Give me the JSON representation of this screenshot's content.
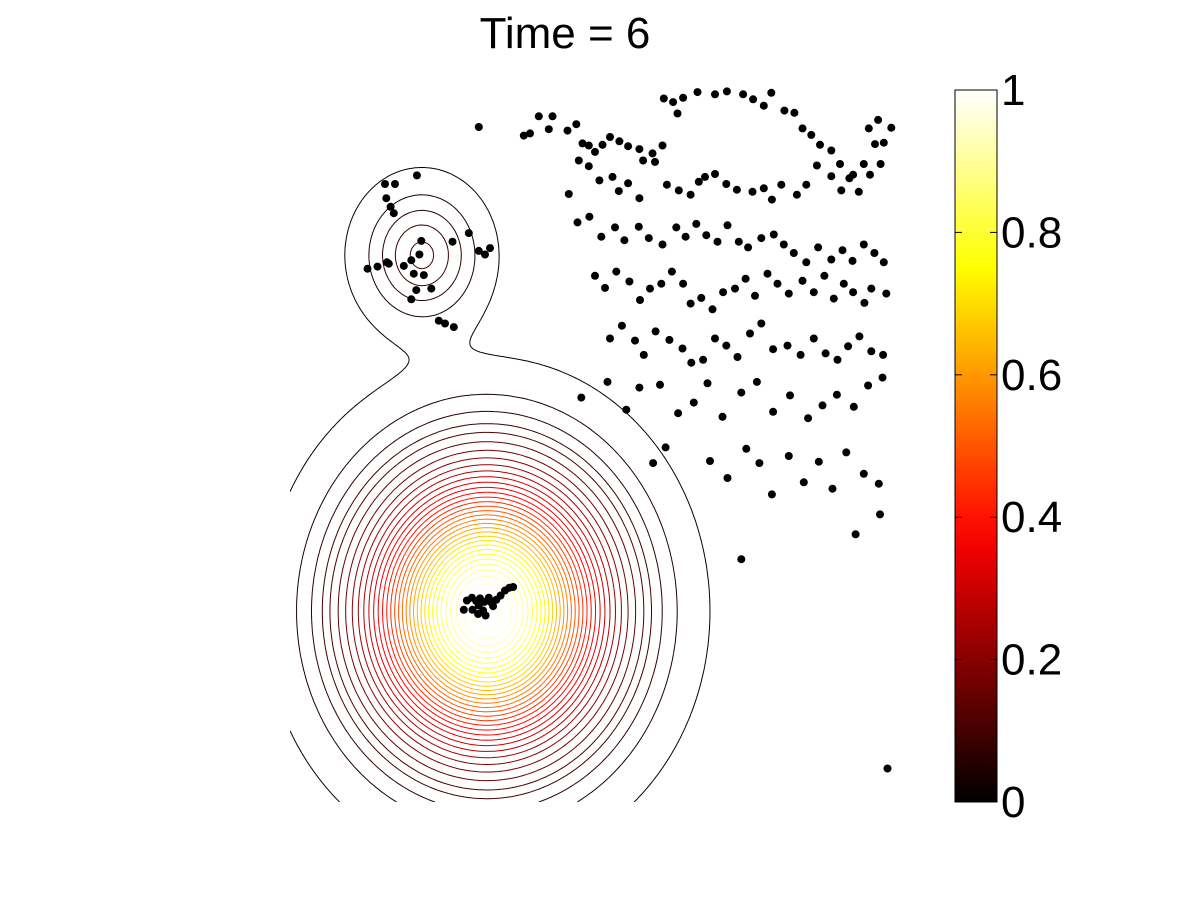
{
  "chart_data": {
    "type": "scatter",
    "title": "Time = 6",
    "subtitle": "",
    "xlabel": "",
    "ylabel": "",
    "axes_visible": false,
    "grid": false,
    "xlim": [
      0,
      1
    ],
    "ylim": [
      0,
      1
    ],
    "contour_field": {
      "kind": "sum of two gaussian bumps, drawn as contour lines",
      "bumps": [
        {
          "center": [
            0.315,
            0.268
          ],
          "amplitude": 1.0,
          "sigma": 0.12
        },
        {
          "center": [
            0.211,
            0.768
          ],
          "amplitude": 0.118,
          "sigma": 0.0576
        }
      ],
      "levels": [
        0.012,
        0.04,
        0.065,
        0.09,
        0.112,
        0.14,
        0.17,
        0.2,
        0.23,
        0.26,
        0.29,
        0.32,
        0.35,
        0.38,
        0.41,
        0.44,
        0.47,
        0.5,
        0.53,
        0.56,
        0.59,
        0.62,
        0.65,
        0.68,
        0.71,
        0.74,
        0.77,
        0.8,
        0.83,
        0.86,
        0.89,
        0.92,
        0.95,
        0.98
      ],
      "colormap": "hot"
    },
    "colorbar": {
      "min": 0,
      "max": 1,
      "ticks": [
        "0",
        "0.2",
        "0.4",
        "0.6",
        "0.8",
        "1"
      ],
      "tick_values": [
        0,
        0.2,
        0.4,
        0.6,
        0.8,
        1
      ],
      "colormap": "hot",
      "colormap_stops": [
        "#000000",
        "#0a0000",
        "#550000",
        "#aa0000",
        "#ff0000",
        "#ff5500",
        "#ffaa00",
        "#ffff00",
        "#ffff80",
        "#ffffff"
      ]
    },
    "series": [
      {
        "marker": "filled-circle",
        "color": "#000000",
        "points": [
          [
            0.152,
            0.868
          ],
          [
            0.168,
            0.868
          ],
          [
            0.154,
            0.848
          ],
          [
            0.161,
            0.836
          ],
          [
            0.166,
            0.827
          ],
          [
            0.21,
            0.788
          ],
          [
            0.194,
            0.761
          ],
          [
            0.198,
            0.742
          ],
          [
            0.207,
            0.769
          ],
          [
            0.182,
            0.753
          ],
          [
            0.214,
            0.74
          ],
          [
            0.194,
            0.706
          ],
          [
            0.124,
            0.749
          ],
          [
            0.14,
            0.752
          ],
          [
            0.155,
            0.758
          ],
          [
            0.158,
            0.756
          ],
          [
            0.26,
            0.787
          ],
          [
            0.203,
            0.88
          ],
          [
            0.286,
            0.799
          ],
          [
            0.312,
            0.769
          ],
          [
            0.32,
            0.778
          ],
          [
            0.302,
            0.774
          ],
          [
            0.202,
            0.719
          ],
          [
            0.226,
            0.721
          ],
          [
            0.262,
            0.667
          ],
          [
            0.238,
            0.676
          ],
          [
            0.248,
            0.672
          ],
          [
            0.302,
            0.948
          ],
          [
            0.374,
            0.936
          ],
          [
            0.384,
            0.939
          ],
          [
            0.414,
            0.945
          ],
          [
            0.398,
            0.963
          ],
          [
            0.42,
            0.963
          ],
          [
            0.444,
            0.943
          ],
          [
            0.458,
            0.952
          ],
          [
            0.468,
            0.925
          ],
          [
            0.478,
            0.922
          ],
          [
            0.488,
            0.913
          ],
          [
            0.5,
            0.923
          ],
          [
            0.512,
            0.934
          ],
          [
            0.527,
            0.928
          ],
          [
            0.541,
            0.921
          ],
          [
            0.559,
            0.917
          ],
          [
            0.58,
            0.911
          ],
          [
            0.596,
            0.922
          ],
          [
            0.62,
            0.967
          ],
          [
            0.598,
            0.988
          ],
          [
            0.613,
            0.983
          ],
          [
            0.629,
            0.989
          ],
          [
            0.652,
            0.997
          ],
          [
            0.68,
            0.994
          ],
          [
            0.699,
            0.998
          ],
          [
            0.725,
            0.994
          ],
          [
            0.741,
            0.987
          ],
          [
            0.758,
            0.978
          ],
          [
            0.77,
            0.996
          ],
          [
            0.791,
            0.971
          ],
          [
            0.807,
            0.968
          ],
          [
            0.82,
            0.946
          ],
          [
            0.834,
            0.937
          ],
          [
            0.848,
            0.923
          ],
          [
            0.866,
            0.915
          ],
          [
            0.88,
            0.896
          ],
          [
            0.901,
            0.881
          ],
          [
            0.918,
            0.896
          ],
          [
            0.926,
            0.946
          ],
          [
            0.941,
            0.958
          ],
          [
            0.936,
            0.924
          ],
          [
            0.95,
            0.926
          ],
          [
            0.962,
            0.947
          ],
          [
            0.446,
            0.854
          ],
          [
            0.462,
            0.901
          ],
          [
            0.478,
            0.893
          ],
          [
            0.495,
            0.873
          ],
          [
            0.516,
            0.878
          ],
          [
            0.526,
            0.858
          ],
          [
            0.541,
            0.869
          ],
          [
            0.559,
            0.848
          ],
          [
            0.565,
            0.901
          ],
          [
            0.584,
            0.899
          ],
          [
            0.603,
            0.867
          ],
          [
            0.622,
            0.859
          ],
          [
            0.641,
            0.853
          ],
          [
            0.654,
            0.871
          ],
          [
            0.664,
            0.878
          ],
          [
            0.68,
            0.882
          ],
          [
            0.698,
            0.868
          ],
          [
            0.715,
            0.86
          ],
          [
            0.74,
            0.857
          ],
          [
            0.758,
            0.862
          ],
          [
            0.771,
            0.846
          ],
          [
            0.786,
            0.867
          ],
          [
            0.811,
            0.853
          ],
          [
            0.826,
            0.867
          ],
          [
            0.843,
            0.894
          ],
          [
            0.866,
            0.879
          ],
          [
            0.882,
            0.859
          ],
          [
            0.895,
            0.876
          ],
          [
            0.91,
            0.857
          ],
          [
            0.928,
            0.881
          ],
          [
            0.945,
            0.896
          ],
          [
            0.46,
            0.814
          ],
          [
            0.479,
            0.822
          ],
          [
            0.498,
            0.794
          ],
          [
            0.52,
            0.807
          ],
          [
            0.535,
            0.789
          ],
          [
            0.558,
            0.808
          ],
          [
            0.574,
            0.792
          ],
          [
            0.596,
            0.783
          ],
          [
            0.618,
            0.807
          ],
          [
            0.633,
            0.794
          ],
          [
            0.65,
            0.812
          ],
          [
            0.666,
            0.796
          ],
          [
            0.684,
            0.787
          ],
          [
            0.7,
            0.81
          ],
          [
            0.718,
            0.787
          ],
          [
            0.733,
            0.779
          ],
          [
            0.754,
            0.792
          ],
          [
            0.774,
            0.797
          ],
          [
            0.79,
            0.783
          ],
          [
            0.806,
            0.771
          ],
          [
            0.826,
            0.758
          ],
          [
            0.845,
            0.779
          ],
          [
            0.866,
            0.762
          ],
          [
            0.884,
            0.775
          ],
          [
            0.9,
            0.76
          ],
          [
            0.918,
            0.783
          ],
          [
            0.935,
            0.771
          ],
          [
            0.95,
            0.758
          ],
          [
            0.488,
            0.739
          ],
          [
            0.504,
            0.722
          ],
          [
            0.522,
            0.745
          ],
          [
            0.543,
            0.731
          ],
          [
            0.56,
            0.705
          ],
          [
            0.576,
            0.721
          ],
          [
            0.594,
            0.728
          ],
          [
            0.611,
            0.745
          ],
          [
            0.629,
            0.728
          ],
          [
            0.641,
            0.7
          ],
          [
            0.658,
            0.708
          ],
          [
            0.676,
            0.692
          ],
          [
            0.693,
            0.716
          ],
          [
            0.712,
            0.721
          ],
          [
            0.729,
            0.735
          ],
          [
            0.744,
            0.711
          ],
          [
            0.764,
            0.742
          ],
          [
            0.78,
            0.728
          ],
          [
            0.798,
            0.714
          ],
          [
            0.82,
            0.732
          ],
          [
            0.838,
            0.716
          ],
          [
            0.855,
            0.739
          ],
          [
            0.87,
            0.707
          ],
          [
            0.886,
            0.728
          ],
          [
            0.901,
            0.716
          ],
          [
            0.919,
            0.701
          ],
          [
            0.93,
            0.721
          ],
          [
            0.954,
            0.714
          ],
          [
            0.512,
            0.651
          ],
          [
            0.531,
            0.669
          ],
          [
            0.552,
            0.648
          ],
          [
            0.566,
            0.628
          ],
          [
            0.585,
            0.661
          ],
          [
            0.607,
            0.649
          ],
          [
            0.628,
            0.637
          ],
          [
            0.642,
            0.617
          ],
          [
            0.661,
            0.621
          ],
          [
            0.68,
            0.651
          ],
          [
            0.698,
            0.641
          ],
          [
            0.716,
            0.625
          ],
          [
            0.736,
            0.658
          ],
          [
            0.754,
            0.672
          ],
          [
            0.773,
            0.636
          ],
          [
            0.796,
            0.641
          ],
          [
            0.817,
            0.628
          ],
          [
            0.838,
            0.651
          ],
          [
            0.857,
            0.63
          ],
          [
            0.876,
            0.621
          ],
          [
            0.893,
            0.64
          ],
          [
            0.911,
            0.654
          ],
          [
            0.93,
            0.633
          ],
          [
            0.949,
            0.628
          ],
          [
            0.466,
            0.568
          ],
          [
            0.508,
            0.59
          ],
          [
            0.538,
            0.551
          ],
          [
            0.559,
            0.582
          ],
          [
            0.592,
            0.586
          ],
          [
            0.621,
            0.546
          ],
          [
            0.646,
            0.561
          ],
          [
            0.668,
            0.588
          ],
          [
            0.692,
            0.541
          ],
          [
            0.722,
            0.575
          ],
          [
            0.747,
            0.59
          ],
          [
            0.773,
            0.548
          ],
          [
            0.8,
            0.571
          ],
          [
            0.829,
            0.539
          ],
          [
            0.852,
            0.557
          ],
          [
            0.875,
            0.572
          ],
          [
            0.902,
            0.555
          ],
          [
            0.925,
            0.585
          ],
          [
            0.948,
            0.596
          ],
          [
            0.581,
            0.476
          ],
          [
            0.601,
            0.498
          ],
          [
            0.672,
            0.479
          ],
          [
            0.7,
            0.455
          ],
          [
            0.73,
            0.496
          ],
          [
            0.751,
            0.476
          ],
          [
            0.771,
            0.432
          ],
          [
            0.798,
            0.486
          ],
          [
            0.822,
            0.449
          ],
          [
            0.846,
            0.478
          ],
          [
            0.868,
            0.44
          ],
          [
            0.89,
            0.491
          ],
          [
            0.918,
            0.461
          ],
          [
            0.942,
            0.447
          ],
          [
            0.905,
            0.376
          ],
          [
            0.944,
            0.404
          ],
          [
            0.722,
            0.341
          ],
          [
            0.956,
            0.047
          ],
          [
            0.283,
            0.283
          ],
          [
            0.291,
            0.287
          ],
          [
            0.298,
            0.282
          ],
          [
            0.302,
            0.276
          ],
          [
            0.304,
            0.286
          ],
          [
            0.311,
            0.281
          ],
          [
            0.318,
            0.287
          ],
          [
            0.322,
            0.28
          ],
          [
            0.33,
            0.284
          ],
          [
            0.337,
            0.29
          ],
          [
            0.344,
            0.297
          ],
          [
            0.351,
            0.301
          ],
          [
            0.357,
            0.302
          ],
          [
            0.309,
            0.269
          ],
          [
            0.301,
            0.264
          ],
          [
            0.292,
            0.27
          ],
          [
            0.278,
            0.27
          ],
          [
            0.313,
            0.262
          ],
          [
            0.325,
            0.275
          ]
        ]
      }
    ]
  }
}
